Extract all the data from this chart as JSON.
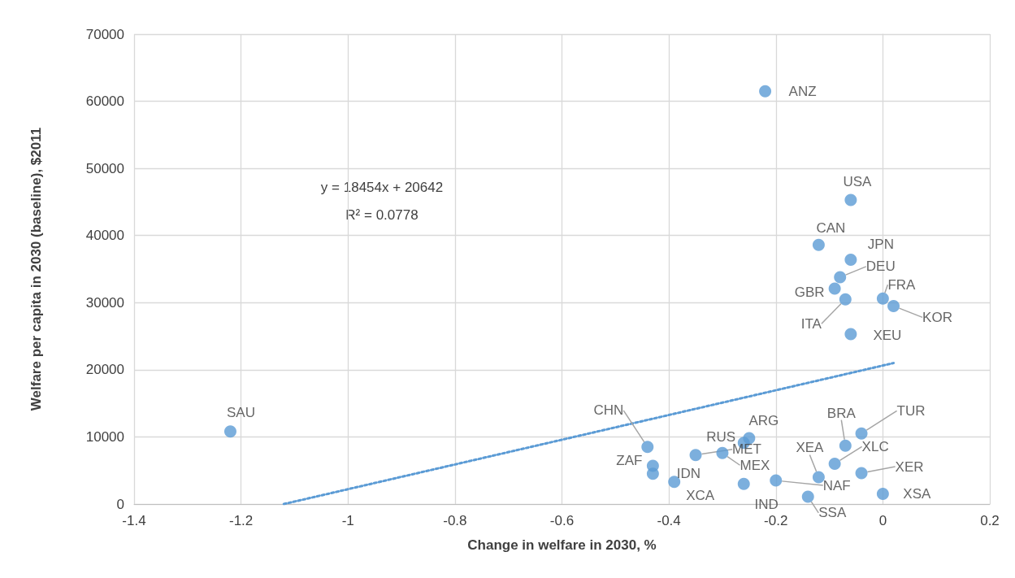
{
  "chart_data": {
    "type": "scatter",
    "xlabel": "Change in welfare in 2030, %",
    "ylabel": "Welfare per capita in 2030 (baseline), $2011",
    "xlim": [
      -1.4,
      0.2
    ],
    "xticks": [
      -1.4,
      -1.2,
      -1,
      -0.8,
      -0.6,
      -0.4,
      -0.2,
      0,
      0.2
    ],
    "ylim": [
      0,
      70000
    ],
    "yticks": [
      0,
      10000,
      20000,
      30000,
      40000,
      50000,
      60000,
      70000
    ],
    "grid": true,
    "annotations": [
      "y = 18454x + 20642",
      "R² = 0.0778"
    ],
    "series": [
      {
        "color": "#5b9bd5",
        "marker": "circle",
        "x": [
          -0.22,
          -0.06,
          -0.12,
          -0.06,
          -0.08,
          -0.09,
          -0.07,
          -0.06,
          0.0,
          0.02,
          -1.22,
          -0.44,
          -0.43,
          -0.43,
          -0.39,
          -0.35,
          -0.3,
          -0.26,
          -0.25,
          -0.26,
          -0.2,
          -0.12,
          -0.14,
          -0.07,
          -0.09,
          -0.04,
          -0.04,
          0.0
        ],
        "values": [
          61500,
          45300,
          38600,
          36400,
          33800,
          32100,
          30500,
          25300,
          30600,
          29500,
          10800,
          8500,
          5700,
          4500,
          3300,
          7300,
          7600,
          9100,
          9800,
          3000,
          3500,
          4000,
          1100,
          8700,
          6000,
          10500,
          4600,
          1500
        ],
        "value_labels": [
          "ANZ",
          "USA",
          "CAN",
          "JPN",
          "DEU",
          "GBR",
          "ITA",
          "XEU",
          "FRA",
          "KOR",
          "SAU",
          "CHN",
          "ZAF",
          "IDN",
          "XCA",
          "MET",
          "MEX",
          "RUS",
          "ARG",
          "IND",
          "NAF",
          "XEA",
          "SSA",
          "BRA",
          "XLC",
          "TUR",
          "XER",
          "XSA"
        ]
      },
      {
        "type": "line",
        "color": "#5b9bd5",
        "marker": "none",
        "line_style": "dotted",
        "x": [
          -1.12,
          0.02
        ],
        "values": [
          0,
          21000
        ]
      }
    ]
  }
}
